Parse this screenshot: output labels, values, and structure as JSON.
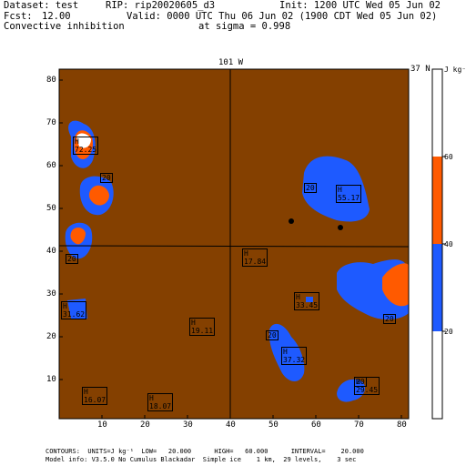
{
  "header": {
    "dataset_label": "Dataset: test",
    "rip_label": "RIP: rip20020605_d3",
    "init_label": "Init: 1200 UTC Wed 05 Jun 02",
    "fcst_label": "Fcst:",
    "fcst_value": "12.00",
    "valid_label": "Valid: 0000 UTC Thu 06 Jun 02 (1900 CDT Wed 05 Jun 02)",
    "field_name": "Convective inhibition",
    "level_label": "at sigma = 0.998"
  },
  "plot": {
    "top_label": "101 W",
    "right_label": "37 N",
    "x_ticks": [
      "10",
      "20",
      "30",
      "40",
      "50",
      "60",
      "70",
      "80"
    ],
    "y_ticks": [
      "10",
      "20",
      "30",
      "40",
      "50",
      "60",
      "70",
      "80"
    ],
    "colors": {
      "background": "#844000",
      "blue": "#1e5aff",
      "orange": "#ff5a00",
      "white": "#ffffff"
    },
    "contour_labels": [
      "20",
      "20",
      "20",
      "20",
      "20",
      "20"
    ],
    "extrema": [
      {
        "letter": "H",
        "value": "72.25"
      },
      {
        "letter": "H",
        "value": "55.17"
      },
      {
        "letter": "H",
        "value": "17.84"
      },
      {
        "letter": "H",
        "value": "31.62"
      },
      {
        "letter": "H",
        "value": "33.45"
      },
      {
        "letter": "H",
        "value": "19.11"
      },
      {
        "letter": "H",
        "value": "37.32"
      },
      {
        "letter": "H",
        "value": "29.45"
      },
      {
        "letter": "H",
        "value": "16.07"
      },
      {
        "letter": "H",
        "value": "18.07"
      }
    ]
  },
  "colorbar": {
    "units": "J kg⁻¹",
    "labels": [
      "60",
      "40",
      "20"
    ],
    "colors": [
      "#ffffff",
      "#ff5a00",
      "#1e5aff",
      "#ffffff"
    ]
  },
  "footer": {
    "contours_line": "CONTOURS:  UNITS=J kg⁻¹  LOW=   20.000      HIGH=   60.000      INTERVAL=    20.000",
    "model_line": "Model info: V3.5.0 No Cumulus Blackadar  Simple ice    1 km,  29 levels,    3 sec"
  }
}
